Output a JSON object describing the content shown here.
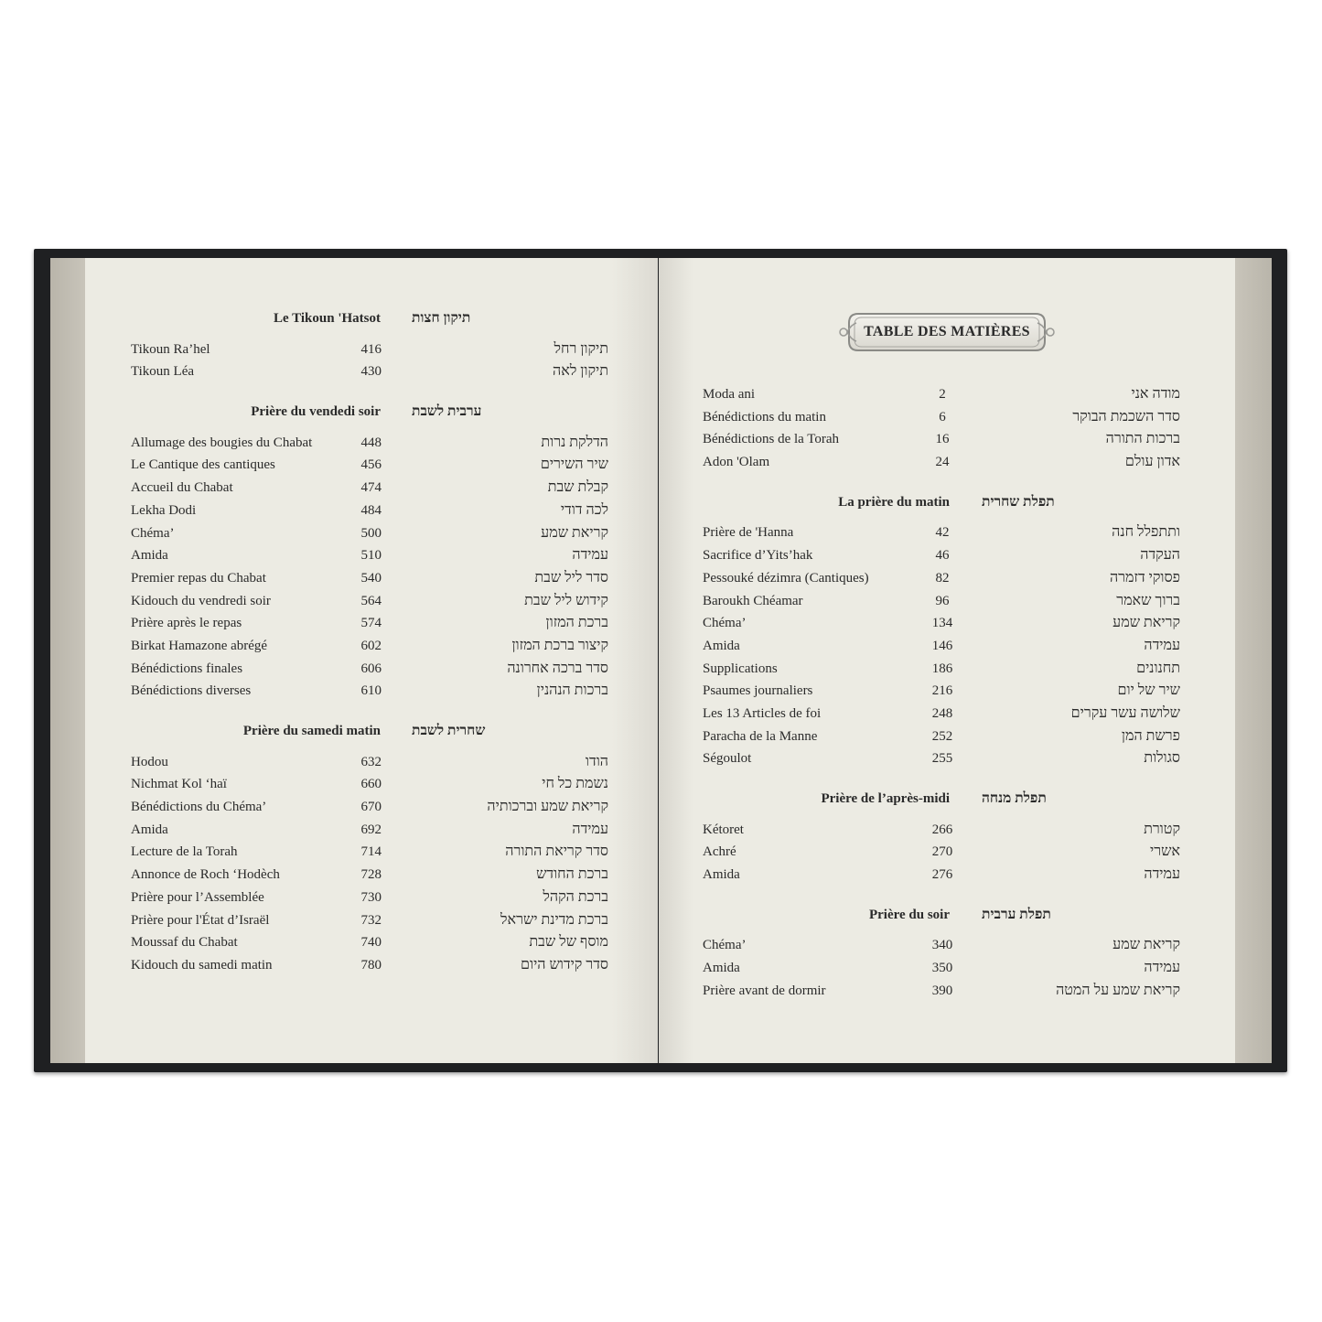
{
  "left_page": {
    "sections": [
      {
        "title_fr": "Le Tikoun 'Hatsot",
        "title_he": "תיקון חצות",
        "entries": [
          {
            "fr": "Tikoun Ra’hel",
            "page": "416",
            "he": "תיקון רחל"
          },
          {
            "fr": "Tikoun Léa",
            "page": "430",
            "he": "תיקון לאה"
          }
        ]
      },
      {
        "title_fr": "Prière du vendedi soir",
        "title_he": "ערבית לשבת",
        "entries": [
          {
            "fr": "Allumage des bougies du Chabat",
            "page": "448",
            "he": "הדלקת נרות"
          },
          {
            "fr": "Le Cantique des cantiques",
            "page": "456",
            "he": "שיר השירים"
          },
          {
            "fr": "Accueil du Chabat",
            "page": "474",
            "he": "קבלת שבת"
          },
          {
            "fr": "Lekha Dodi",
            "page": "484",
            "he": "לכה דודי"
          },
          {
            "fr": "Chéma’",
            "page": "500",
            "he": "קריאת שמע"
          },
          {
            "fr": "Amida",
            "page": "510",
            "he": "עמידה"
          },
          {
            "fr": "Premier repas du Chabat",
            "page": "540",
            "he": "סדר ליל שבת"
          },
          {
            "fr": "Kidouch du vendredi soir",
            "page": "564",
            "he": "קידוש ליל שבת"
          },
          {
            "fr": "Prière après le repas",
            "page": "574",
            "he": "ברכת המזון"
          },
          {
            "fr": "Birkat Hamazone abrégé",
            "page": "602",
            "he": "קיצור ברכת המזון"
          },
          {
            "fr": "Bénédictions finales",
            "page": "606",
            "he": "סדר ברכה אחרונה"
          },
          {
            "fr": "Bénédictions diverses",
            "page": "610",
            "he": "ברכות הנהנין"
          }
        ]
      },
      {
        "title_fr": "Prière du samedi matin",
        "title_he": "שחרית לשבת",
        "entries": [
          {
            "fr": "Hodou",
            "page": "632",
            "he": "הודו"
          },
          {
            "fr": "Nichmat Kol ‘haï",
            "page": "660",
            "he": "נשמת כל חי"
          },
          {
            "fr": "Bénédictions du Chéma’",
            "page": "670",
            "he": "קריאת שמע וברכותיה"
          },
          {
            "fr": "Amida",
            "page": "692",
            "he": "עמידה"
          },
          {
            "fr": "Lecture de la Torah",
            "page": "714",
            "he": "סדר קריאת התורה"
          },
          {
            "fr": "Annonce de Roch ‘Hodèch",
            "page": "728",
            "he": "ברכת החודש"
          },
          {
            "fr": "Prière pour l’Assemblée",
            "page": "730",
            "he": "ברכת הקהל"
          },
          {
            "fr": "Prière pour l'État d’Israël",
            "page": "732",
            "he": "ברכת מדינת ישראל"
          },
          {
            "fr": "Moussaf du Chabat",
            "page": "740",
            "he": "מוסף של שבת"
          },
          {
            "fr": "Kidouch du samedi matin",
            "page": "780",
            "he": "סדר קידוש היום"
          }
        ]
      }
    ]
  },
  "right_page": {
    "title": "TABLE DES MATIÈRES",
    "sections": [
      {
        "title_fr": "",
        "title_he": "",
        "entries": [
          {
            "fr": "Moda ani",
            "page": "2",
            "he": "מודה אני"
          },
          {
            "fr": "Bénédictions du matin",
            "page": "6",
            "he": "סדר השכמת הבוקר"
          },
          {
            "fr": "Bénédictions de la Torah",
            "page": "16",
            "he": "ברכות התורה"
          },
          {
            "fr": "Adon 'Olam",
            "page": "24",
            "he": "אדון עולם"
          }
        ]
      },
      {
        "title_fr": "La prière du matin",
        "title_he": "תפלת שחרית",
        "entries": [
          {
            "fr": "Prière de 'Hanna",
            "page": "42",
            "he": "ותתפלל חנה"
          },
          {
            "fr": "Sacrifice d’Yits’hak",
            "page": "46",
            "he": "העקדה"
          },
          {
            "fr": "Pessouké dézimra (Cantiques)",
            "page": "82",
            "he": "פסוקי דזמרה"
          },
          {
            "fr": "Baroukh Chéamar",
            "page": "96",
            "he": "ברוך שאמר"
          },
          {
            "fr": "Chéma’",
            "page": "134",
            "he": "קריאת שמע"
          },
          {
            "fr": "Amida",
            "page": "146",
            "he": "עמידה"
          },
          {
            "fr": "Supplications",
            "page": "186",
            "he": "תחנונים"
          },
          {
            "fr": "Psaumes journaliers",
            "page": "216",
            "he": "שיר של יום"
          },
          {
            "fr": "Les 13 Articles de foi",
            "page": "248",
            "he": "שלושה עשר עקרים"
          },
          {
            "fr": "Paracha de la Manne",
            "page": "252",
            "he": "פרשת המן"
          },
          {
            "fr": "Ségoulot",
            "page": "255",
            "he": "סגולות"
          }
        ]
      },
      {
        "title_fr": "Prière de l’après-midi",
        "title_he": "תפלת מנחה",
        "entries": [
          {
            "fr": "Kétoret",
            "page": "266",
            "he": "קטורת"
          },
          {
            "fr": "Achré",
            "page": "270",
            "he": "אשרי"
          },
          {
            "fr": "Amida",
            "page": "276",
            "he": "עמידה"
          }
        ]
      },
      {
        "title_fr": "Prière du soir",
        "title_he": "תפלת ערבית",
        "entries": [
          {
            "fr": "Chéma’",
            "page": "340",
            "he": "קריאת שמע"
          },
          {
            "fr": "Amida",
            "page": "350",
            "he": "עמידה"
          },
          {
            "fr": "Prière avant de dormir",
            "page": "390",
            "he": "קריאת שמע על המטה"
          }
        ]
      }
    ]
  },
  "colors": {
    "cover": "#1f2022",
    "page": "#ecebe3",
    "page_edge": "#c2beb4",
    "text": "#2a2a2a"
  }
}
